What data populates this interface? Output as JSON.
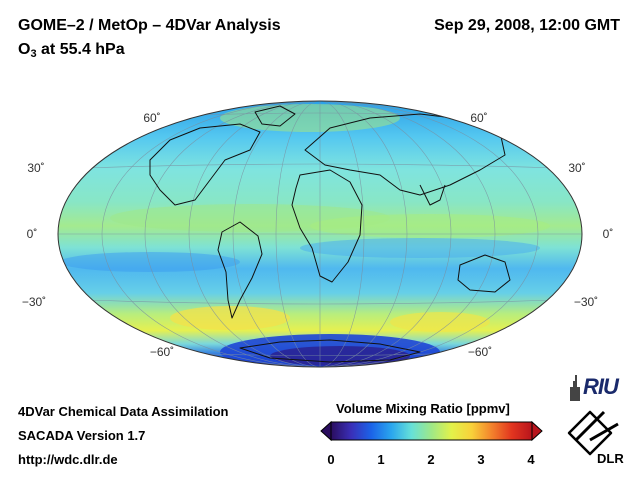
{
  "header": {
    "title": "GOME–2 / MetOp – 4DVar Analysis",
    "datetime": "Sep 29, 2008, 12:00 GMT",
    "species": "O",
    "species_sub": "3",
    "level": " at 55.4 hPa"
  },
  "map": {
    "projection": "Hammer-Aitoff",
    "lat_labels_left": [
      "60˚",
      "30˚",
      "0˚",
      "−30˚",
      "−60˚"
    ],
    "lat_labels_right": [
      "60˚",
      "30˚",
      "0˚",
      "−30˚",
      "−60˚"
    ]
  },
  "colorbar": {
    "title": "Volume Mixing Ratio [ppmv]",
    "ticks": [
      "0",
      "1",
      "2",
      "3",
      "4"
    ],
    "colors": [
      "#2a0d5e",
      "#3a2fb8",
      "#1b63e8",
      "#2aa6ee",
      "#66e0d8",
      "#9fe887",
      "#e3f24a",
      "#f8d13a",
      "#f3822c",
      "#e2351f",
      "#b8141c"
    ]
  },
  "footer": {
    "line1": "4DVar Chemical Data Assimilation",
    "line2": "SACADA Version 1.7",
    "line3": "http://wdc.dlr.de"
  },
  "logos": {
    "riu": "RIU",
    "dlr": "DLR"
  }
}
